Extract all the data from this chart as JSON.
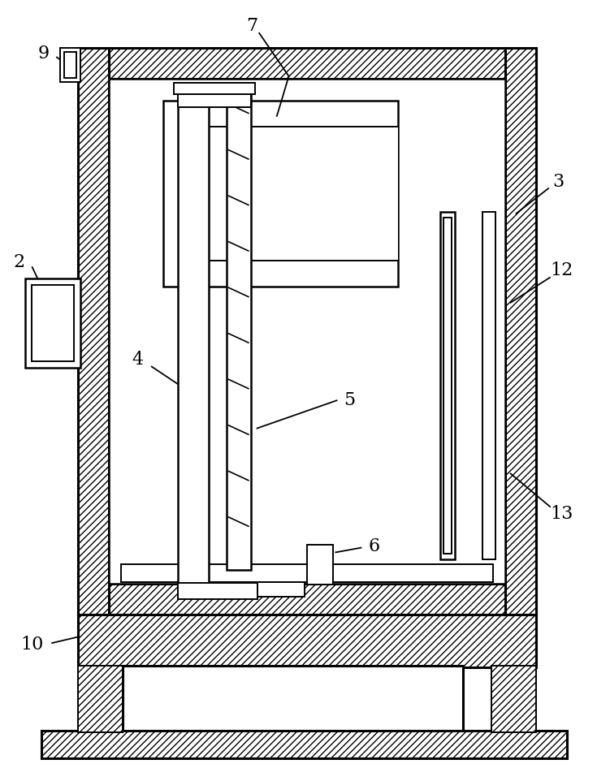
{
  "bg_color": "#ffffff",
  "line_color": "#000000",
  "fig_width": 7.51,
  "fig_height": 9.46,
  "label_font_size": 16
}
